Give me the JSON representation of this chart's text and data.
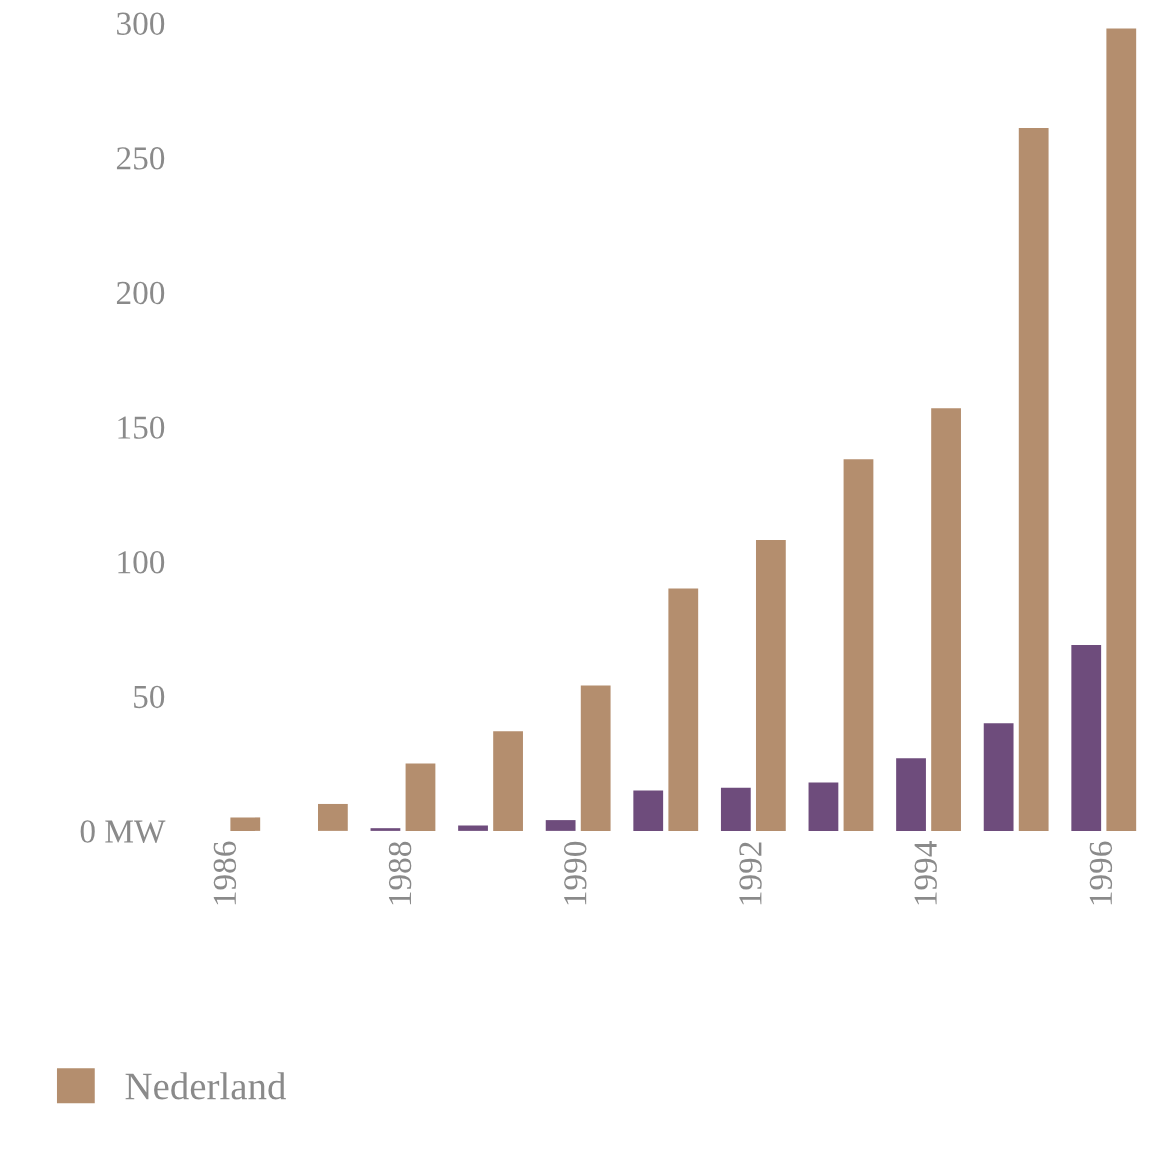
{
  "chart_data": {
    "type": "bar",
    "categories": [
      "1986",
      null,
      "1988",
      null,
      "1990",
      null,
      "1992",
      null,
      "1994",
      null,
      "1996"
    ],
    "series": [
      {
        "color": "#6e4c7c",
        "values": [
          0,
          0,
          1,
          2,
          4,
          15,
          16,
          18,
          27,
          40,
          69
        ]
      },
      {
        "name": "Nederland",
        "color": "#b48e6e",
        "values": [
          5,
          10,
          25,
          37,
          54,
          90,
          108,
          138,
          157,
          261,
          298
        ]
      }
    ],
    "ylim": [
      0,
      300
    ],
    "yticks": [
      {
        "value": 0,
        "label": "0 MW"
      },
      50,
      100,
      150,
      200,
      250,
      300
    ],
    "grid": false,
    "legend": "bottom left"
  }
}
